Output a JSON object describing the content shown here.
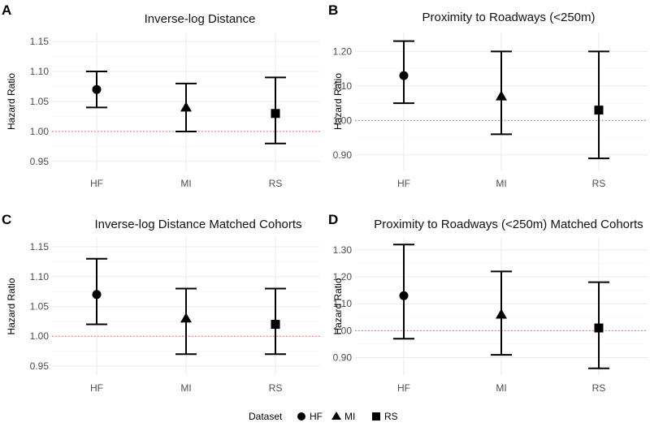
{
  "legend": {
    "title": "Dataset",
    "entries": [
      {
        "label": "HF",
        "shape": "circle"
      },
      {
        "label": "MI",
        "shape": "triangle"
      },
      {
        "label": "RS",
        "shape": "square"
      }
    ]
  },
  "chart_data": [
    {
      "type": "scatter",
      "tag": "A",
      "title": "Inverse-log Distance",
      "xlabel": "",
      "ylabel": "Hazard Ratio",
      "categories": [
        "HF",
        "MI",
        "RS"
      ],
      "ylim": [
        0.935,
        1.165
      ],
      "yticks": [
        0.95,
        1.0,
        1.05,
        1.1,
        1.15
      ],
      "ytick_labels": [
        "0.95",
        "1.00",
        "1.05",
        "1.10",
        "1.15"
      ],
      "reference_line": 1.0,
      "points": [
        {
          "category": "HF",
          "estimate": 1.07,
          "lower": 1.04,
          "upper": 1.1,
          "shape": "circle"
        },
        {
          "category": "MI",
          "estimate": 1.04,
          "lower": 1.0,
          "upper": 1.08,
          "shape": "triangle"
        },
        {
          "category": "RS",
          "estimate": 1.03,
          "lower": 0.98,
          "upper": 1.09,
          "shape": "square"
        }
      ]
    },
    {
      "type": "scatter",
      "tag": "B",
      "title": "Proximity to Roadways (<250m)",
      "xlabel": "",
      "ylabel": "Hazard Ratio",
      "categories": [
        "HF",
        "MI",
        "RS"
      ],
      "ylim": [
        0.855,
        1.255
      ],
      "yticks": [
        0.9,
        1.0,
        1.1,
        1.2
      ],
      "ytick_labels": [
        "0.90",
        "1.00",
        "1.10",
        "1.20"
      ],
      "reference_line": 1.0,
      "points": [
        {
          "category": "HF",
          "estimate": 1.13,
          "lower": 1.05,
          "upper": 1.23,
          "shape": "circle"
        },
        {
          "category": "MI",
          "estimate": 1.07,
          "lower": 0.96,
          "upper": 1.2,
          "shape": "triangle"
        },
        {
          "category": "RS",
          "estimate": 1.03,
          "lower": 0.89,
          "upper": 1.2,
          "shape": "square"
        }
      ]
    },
    {
      "type": "scatter",
      "tag": "C",
      "title": "Inverse-log Distance Matched Cohorts",
      "xlabel": "",
      "ylabel": "Hazard Ratio",
      "categories": [
        "HF",
        "MI",
        "RS"
      ],
      "ylim": [
        0.935,
        1.165
      ],
      "yticks": [
        0.95,
        1.0,
        1.05,
        1.1,
        1.15
      ],
      "ytick_labels": [
        "0.95",
        "1.00",
        "1.05",
        "1.10",
        "1.15"
      ],
      "reference_line": 1.0,
      "points": [
        {
          "category": "HF",
          "estimate": 1.07,
          "lower": 1.02,
          "upper": 1.13,
          "shape": "circle"
        },
        {
          "category": "MI",
          "estimate": 1.03,
          "lower": 0.97,
          "upper": 1.08,
          "shape": "triangle"
        },
        {
          "category": "RS",
          "estimate": 1.02,
          "lower": 0.97,
          "upper": 1.08,
          "shape": "square"
        }
      ]
    },
    {
      "type": "scatter",
      "tag": "D",
      "title": "Proximity to Roadways (<250m) Matched Cohorts",
      "xlabel": "",
      "ylabel": "Hazard Ratio",
      "categories": [
        "HF",
        "MI",
        "RS"
      ],
      "ylim": [
        0.835,
        1.345
      ],
      "yticks": [
        0.9,
        1.0,
        1.1,
        1.2,
        1.3
      ],
      "ytick_labels": [
        "0.90",
        "1.00",
        "1.10",
        "1.20",
        "1.30"
      ],
      "reference_line": 1.0,
      "points": [
        {
          "category": "HF",
          "estimate": 1.13,
          "lower": 0.97,
          "upper": 1.32,
          "shape": "circle"
        },
        {
          "category": "MI",
          "estimate": 1.06,
          "lower": 0.91,
          "upper": 1.22,
          "shape": "triangle"
        },
        {
          "category": "RS",
          "estimate": 1.01,
          "lower": 0.86,
          "upper": 1.18,
          "shape": "square"
        }
      ]
    }
  ]
}
